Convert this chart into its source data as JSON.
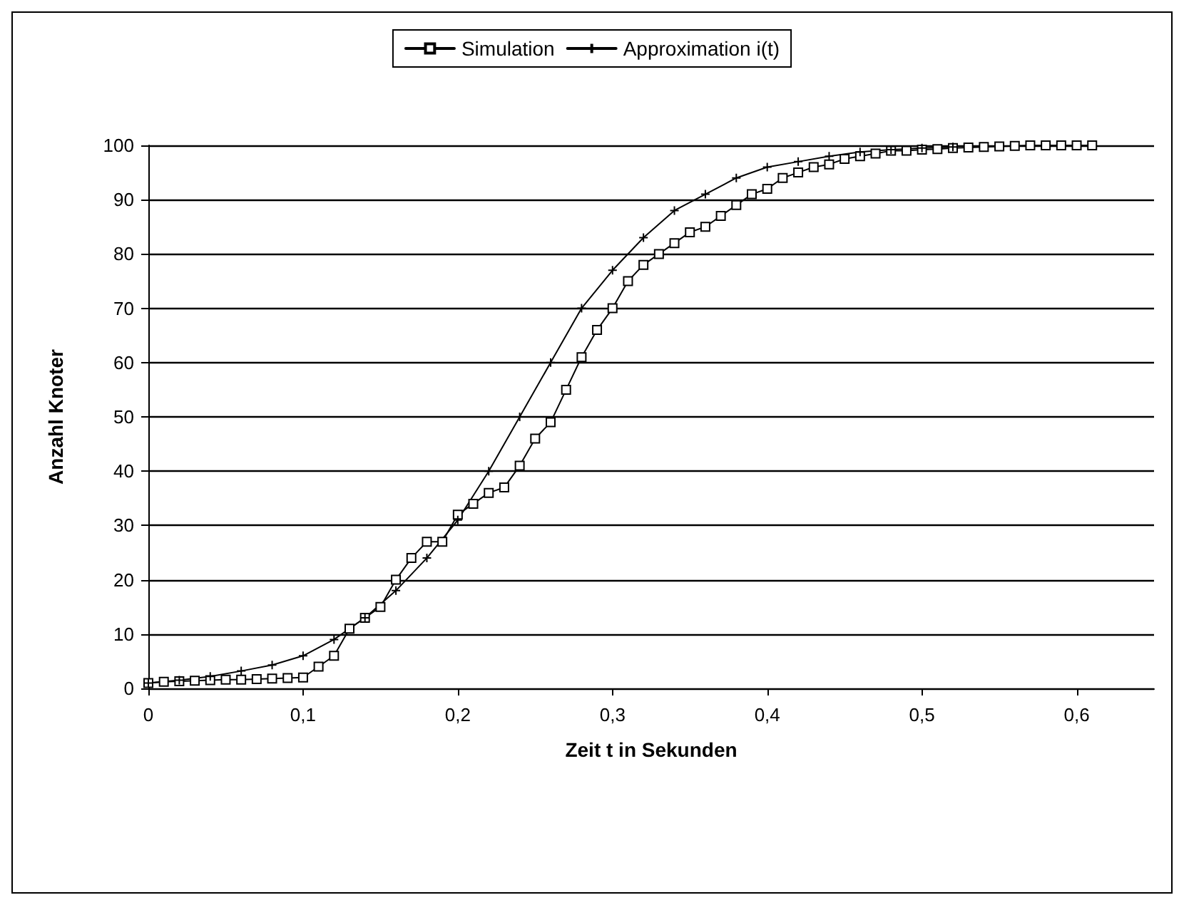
{
  "chart_data": {
    "type": "line",
    "xlabel": "Zeit t in Sekunden",
    "ylabel": "Anzahl Knoter",
    "xlim": [
      0,
      0.65
    ],
    "xticks": [
      {
        "value": 0,
        "label": "0"
      },
      {
        "value": 0.1,
        "label": "0,1"
      },
      {
        "value": 0.2,
        "label": "0,2"
      },
      {
        "value": 0.3,
        "label": "0,3"
      },
      {
        "value": 0.4,
        "label": "0,4"
      },
      {
        "value": 0.5,
        "label": "0,5"
      },
      {
        "value": 0.6,
        "label": "0,6"
      }
    ],
    "ylim": [
      0,
      100
    ],
    "yticks": [
      0,
      10,
      20,
      30,
      40,
      50,
      60,
      70,
      80,
      90,
      100
    ],
    "grid": "y",
    "legend": "top",
    "series": [
      {
        "name": "Simulation",
        "color": "#000000",
        "marker": "square",
        "x": [
          0,
          0.01,
          0.02,
          0.03,
          0.04,
          0.05,
          0.06,
          0.07,
          0.08,
          0.09,
          0.1,
          0.11,
          0.12,
          0.13,
          0.14,
          0.15,
          0.16,
          0.17,
          0.18,
          0.19,
          0.2,
          0.21,
          0.22,
          0.23,
          0.24,
          0.25,
          0.26,
          0.27,
          0.28,
          0.29,
          0.3,
          0.31,
          0.32,
          0.33,
          0.34,
          0.35,
          0.36,
          0.37,
          0.38,
          0.39,
          0.4,
          0.41,
          0.42,
          0.43,
          0.44,
          0.45,
          0.46,
          0.47,
          0.48,
          0.49,
          0.5,
          0.51,
          0.52,
          0.53,
          0.54,
          0.55,
          0.56,
          0.57,
          0.58,
          0.59,
          0.6,
          0.61
        ],
        "values": [
          1,
          1.2,
          1.3,
          1.4,
          1.5,
          1.6,
          1.6,
          1.7,
          1.8,
          1.9,
          2,
          4,
          6,
          11,
          13,
          15,
          20,
          24,
          27,
          27,
          32,
          34,
          36,
          37,
          41,
          46,
          49,
          55,
          61,
          66,
          70,
          75,
          78,
          80,
          82,
          84,
          85,
          87,
          89,
          91,
          92,
          94,
          95,
          96,
          96.5,
          97.5,
          98,
          98.5,
          99,
          99,
          99.2,
          99.3,
          99.5,
          99.6,
          99.7,
          99.8,
          99.9,
          100,
          100,
          100,
          100,
          100
        ]
      },
      {
        "name": "Approximation i(t)",
        "color": "#000000",
        "marker": "cross",
        "x": [
          0,
          0.02,
          0.04,
          0.06,
          0.08,
          0.1,
          0.12,
          0.14,
          0.16,
          0.18,
          0.2,
          0.22,
          0.24,
          0.26,
          0.28,
          0.3,
          0.32,
          0.34,
          0.36,
          0.38,
          0.4,
          0.42,
          0.44,
          0.46,
          0.48,
          0.5,
          0.52
        ],
        "values": [
          1,
          1.5,
          2.2,
          3.2,
          4.3,
          6,
          9,
          13,
          18,
          24,
          31,
          40,
          50,
          60,
          70,
          77,
          83,
          88,
          91,
          94,
          96,
          97,
          98,
          98.8,
          99.2,
          99.5,
          99.7
        ]
      }
    ]
  }
}
